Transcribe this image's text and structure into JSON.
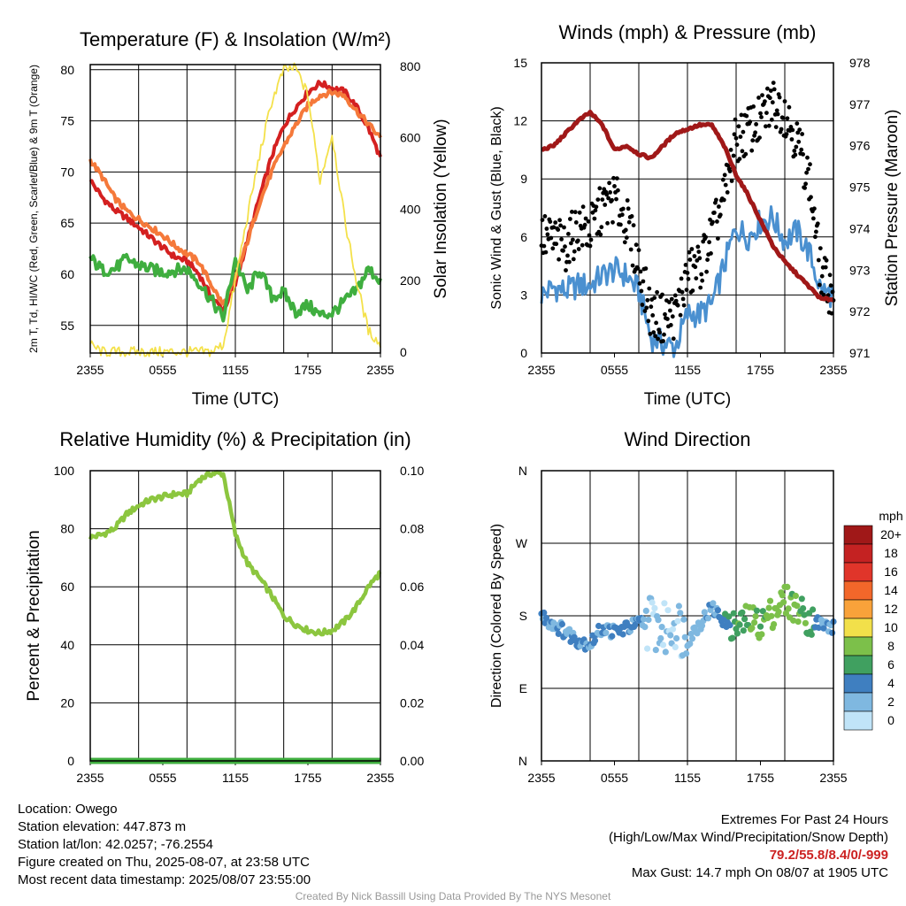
{
  "colors": {
    "temp_2m": "#d42020",
    "temp_9m": "#f5793a",
    "heat_index": "#3fae3f",
    "insolation": "#f4e14a",
    "wind_speed": "#4a90d0",
    "wind_gust": "#000000",
    "pressure": "#a01818",
    "rh": "#8cc63f",
    "precip": "#3fae3f"
  },
  "footer": {
    "location": "Location: Owego",
    "elevation": "Station elevation: 447.873 m",
    "latlon": "Station lat/lon: 42.0257; -76.2554",
    "created": "Figure created on Thu, 2025-08-07, at 23:58 UTC",
    "recent": "Most recent data timestamp: 2025/08/07 23:55:00",
    "extremes_title": "Extremes For Past 24 Hours",
    "extremes_sub": "(High/Low/Max Wind/Precipitation/Snow Depth)",
    "extremes_values": "79.2/55.8/8.4/0/-999",
    "max_gust": "Max Gust: 14.7 mph On 08/07 at 1905 UTC",
    "credit": "Created By Nick Bassill Using Data Provided By The NYS Mesonet"
  },
  "chart_data": [
    {
      "type": "line",
      "title": "Temperature (F) & Insolation (W/m²)",
      "xlabel": "Time (UTC)",
      "ylabel_left": "2m T, Td, HI/WC (Red, Green, Scarlet/Blue) & 9m T (Orange)",
      "ylabel_right": "Solar Insolation (Yellow)",
      "x_ticks": [
        "2355",
        "0555",
        "1155",
        "1755",
        "2355"
      ],
      "x": [
        0,
        1,
        2,
        3,
        4,
        5,
        6,
        7,
        8,
        9,
        10,
        11,
        12,
        13,
        14,
        15,
        16,
        17,
        18,
        19,
        20,
        21,
        22,
        23,
        24
      ],
      "ylim_left": [
        52.3,
        80.5
      ],
      "yticks_left": [
        55,
        60,
        65,
        70,
        75,
        80
      ],
      "ylim_right": [
        -3,
        805
      ],
      "yticks_right": [
        0,
        200,
        400,
        600,
        800
      ],
      "series": [
        {
          "name": "2m T",
          "axis": "left",
          "color_key": "temp_2m",
          "values": [
            69.2,
            67.5,
            66.3,
            65.5,
            64.6,
            63.6,
            62.6,
            61.7,
            61.3,
            60.0,
            57.8,
            56.5,
            59.0,
            63.3,
            67.5,
            71.5,
            74.5,
            76.3,
            77.8,
            78.7,
            78.2,
            77.9,
            76.4,
            74.3,
            71.4
          ]
        },
        {
          "name": "9m T",
          "axis": "left",
          "color_key": "temp_9m",
          "values": [
            71.2,
            69.5,
            67.5,
            66.2,
            65.4,
            64.6,
            63.8,
            62.8,
            62.0,
            61.2,
            59.0,
            57.0,
            59.5,
            63.2,
            67.0,
            70.0,
            72.5,
            74.6,
            76.5,
            77.5,
            77.8,
            77.5,
            76.0,
            74.7,
            73.3
          ]
        },
        {
          "name": "Td",
          "axis": "left",
          "color_key": "heat_index",
          "values": [
            61.6,
            60.4,
            60.5,
            61.5,
            60.9,
            60.5,
            60.2,
            60.4,
            60.5,
            59.2,
            57.5,
            55.7,
            61.5,
            58.3,
            60.5,
            57.8,
            58.2,
            56.3,
            57.0,
            56.0,
            56.2,
            57.3,
            58.4,
            60.5,
            59.4
          ]
        },
        {
          "name": "Insolation",
          "axis": "right",
          "color_key": "insolation",
          "values": [
            20,
            0,
            0,
            0,
            0,
            0,
            0,
            0,
            0,
            0,
            0,
            20,
            200,
            380,
            550,
            700,
            790,
            795,
            720,
            480,
            610,
            380,
            200,
            60,
            20
          ]
        }
      ]
    },
    {
      "type": "line",
      "title": "Winds (mph) & Pressure (mb)",
      "xlabel": "Time (UTC)",
      "ylabel_left": "Sonic Wind & Gust (Blue, Black)",
      "ylabel_right": "Station Pressure (Maroon)",
      "x_ticks": [
        "2355",
        "0555",
        "1155",
        "1755",
        "2355"
      ],
      "x": [
        0,
        1,
        2,
        3,
        4,
        5,
        6,
        7,
        8,
        9,
        10,
        11,
        12,
        13,
        14,
        15,
        16,
        17,
        18,
        19,
        20,
        21,
        22,
        23,
        24
      ],
      "ylim_left": [
        0,
        15
      ],
      "yticks_left": [
        0,
        3,
        6,
        9,
        12,
        15
      ],
      "ylim_right": [
        971,
        978
      ],
      "yticks_right": [
        971,
        972,
        973,
        974,
        975,
        976,
        977,
        978
      ],
      "series": [
        {
          "name": "Sonic Wind",
          "axis": "left",
          "color_key": "wind_speed",
          "values": [
            3.0,
            3.4,
            3.2,
            3.5,
            3.5,
            4.0,
            4.3,
            4.0,
            3.2,
            0.8,
            0.5,
            0.3,
            2.0,
            2.0,
            2.5,
            4.5,
            6.5,
            6.0,
            6.8,
            7.0,
            5.8,
            6.3,
            5.2,
            3.2,
            3.0
          ]
        },
        {
          "name": "Gust",
          "axis": "left",
          "color_key": "wind_gust",
          "style": "dots",
          "values": [
            6.0,
            5.8,
            5.5,
            6.5,
            6.3,
            7.5,
            8.0,
            6.8,
            4.5,
            2.0,
            1.8,
            2.0,
            4.0,
            4.5,
            6.0,
            8.0,
            11.0,
            11.5,
            12.0,
            13.0,
            12.5,
            11.0,
            9.0,
            4.0,
            3.0
          ]
        },
        {
          "name": "Station Pressure",
          "axis": "right",
          "color_key": "pressure",
          "values": [
            975.9,
            976.0,
            976.3,
            976.6,
            976.8,
            976.5,
            975.9,
            976.0,
            975.8,
            975.7,
            976.0,
            976.3,
            976.4,
            976.5,
            976.5,
            976.0,
            975.3,
            974.8,
            974.2,
            973.6,
            973.2,
            972.9,
            972.6,
            972.3,
            972.3
          ]
        }
      ]
    },
    {
      "type": "line",
      "title": "Relative Humidity (%) & Precipitation (in)",
      "xlabel": "",
      "ylabel_left": "Percent & Precipitation",
      "ylabel_right": "",
      "x_ticks": [
        "2355",
        "0555",
        "1155",
        "1755",
        "2355"
      ],
      "x": [
        0,
        1,
        2,
        3,
        4,
        5,
        6,
        7,
        8,
        9,
        10,
        11,
        12,
        13,
        14,
        15,
        16,
        17,
        18,
        19,
        20,
        21,
        22,
        23,
        24
      ],
      "ylim_left": [
        0,
        100
      ],
      "yticks_left": [
        0,
        20,
        40,
        60,
        80,
        100
      ],
      "ylim_right": [
        0,
        0.1
      ],
      "yticks_right": [
        "0.00",
        "0.02",
        "0.04",
        "0.06",
        "0.08",
        "0.10"
      ],
      "series": [
        {
          "name": "RH",
          "axis": "left",
          "color_key": "rh",
          "values": [
            77,
            78,
            80,
            85,
            88,
            90,
            91,
            92,
            92,
            97,
            99,
            99,
            78,
            68,
            63,
            57,
            50,
            47,
            45,
            44,
            45,
            48,
            53,
            60,
            65
          ]
        },
        {
          "name": "Precipitation",
          "axis": "right",
          "color_key": "precip",
          "values": [
            0,
            0,
            0,
            0,
            0,
            0,
            0,
            0,
            0,
            0,
            0,
            0,
            0,
            0,
            0,
            0,
            0,
            0,
            0,
            0,
            0,
            0,
            0,
            0,
            0
          ]
        }
      ]
    },
    {
      "type": "scatter",
      "title": "Wind Direction",
      "xlabel": "",
      "ylabel_left": "Direction (Colored By Speed)",
      "x_ticks": [
        "2355",
        "0555",
        "1155",
        "1755",
        "2355"
      ],
      "x": [
        0,
        1,
        2,
        3,
        4,
        5,
        6,
        7,
        8,
        9,
        10,
        11,
        12,
        13,
        14,
        15,
        16,
        17,
        18,
        19,
        20,
        21,
        22,
        23,
        24
      ],
      "y_ticks": [
        "N",
        "E",
        "S",
        "W",
        "N"
      ],
      "ylim": [
        0,
        360
      ],
      "y_tick_values": [
        0,
        90,
        180,
        270,
        360
      ],
      "legend_title": "mph",
      "legend_labels": [
        "20+",
        "18",
        "16",
        "14",
        "12",
        "10",
        "8",
        "6",
        "4",
        "2",
        "0"
      ],
      "legend_colors": [
        "#a01818",
        "#c42222",
        "#e0352a",
        "#f2672a",
        "#f9a23a",
        "#f2e04a",
        "#7cc04a",
        "#40a060",
        "#3f7fc0",
        "#7fb8e0",
        "#c0e4f8"
      ],
      "series": [
        {
          "name": "Direction",
          "values": [
            180,
            170,
            160,
            150,
            145,
            165,
            160,
            165,
            170,
            175,
            160,
            175,
            150,
            170,
            190,
            175,
            165,
            175,
            170,
            185,
            200,
            190,
            175,
            170,
            165
          ],
          "speeds": [
            3,
            3,
            3,
            3,
            3,
            3,
            3,
            4,
            3,
            1,
            1,
            1,
            2,
            2,
            3,
            4,
            6,
            7,
            7,
            8,
            8,
            7,
            6,
            3,
            3
          ]
        }
      ]
    }
  ]
}
